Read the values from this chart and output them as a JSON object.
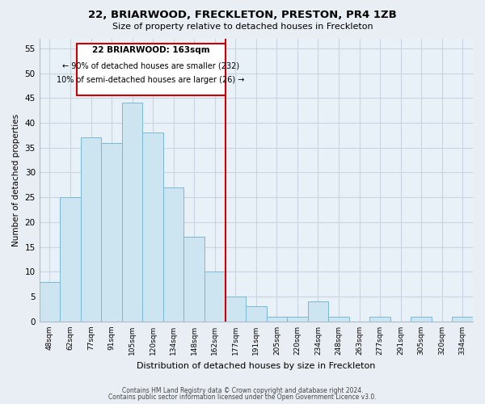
{
  "title": "22, BRIARWOOD, FRECKLETON, PRESTON, PR4 1ZB",
  "subtitle": "Size of property relative to detached houses in Freckleton",
  "xlabel": "Distribution of detached houses by size in Freckleton",
  "ylabel": "Number of detached properties",
  "bar_labels": [
    "48sqm",
    "62sqm",
    "77sqm",
    "91sqm",
    "105sqm",
    "120sqm",
    "134sqm",
    "148sqm",
    "162sqm",
    "177sqm",
    "191sqm",
    "205sqm",
    "220sqm",
    "234sqm",
    "248sqm",
    "263sqm",
    "277sqm",
    "291sqm",
    "305sqm",
    "320sqm",
    "334sqm"
  ],
  "bar_values": [
    8,
    25,
    37,
    36,
    44,
    38,
    27,
    17,
    10,
    5,
    3,
    1,
    1,
    4,
    1,
    0,
    1,
    0,
    1,
    0,
    1
  ],
  "bar_color": "#cce5f0",
  "bar_edge_color": "#7ab8d4",
  "vline_color": "#cc0000",
  "vline_pos": 8.5,
  "ylim": [
    0,
    57
  ],
  "yticks": [
    0,
    5,
    10,
    15,
    20,
    25,
    30,
    35,
    40,
    45,
    50,
    55
  ],
  "annotation_title": "22 BRIARWOOD: 163sqm",
  "annotation_line1": "← 90% of detached houses are smaller (232)",
  "annotation_line2": "10% of semi-detached houses are larger (26) →",
  "footer1": "Contains HM Land Registry data © Crown copyright and database right 2024.",
  "footer2": "Contains public sector information licensed under the Open Government Licence v3.0.",
  "bg_color": "#e8eef4",
  "plot_bg_color": "#e8f0f8",
  "grid_color": "#c8d4e0"
}
